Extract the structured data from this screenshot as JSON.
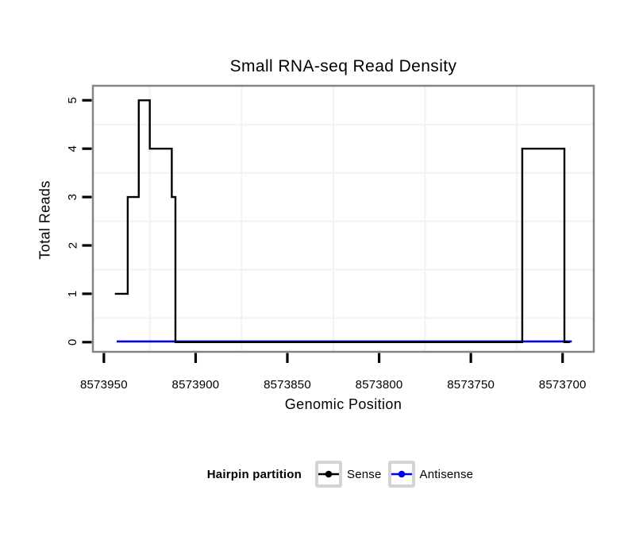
{
  "chart_data": {
    "type": "line",
    "subtype": "step",
    "title": "Small RNA-seq Read Density",
    "xlabel": "Genomic Position",
    "ylabel": "Total Reads",
    "x_axis_reversed": true,
    "xlim": [
      8573956,
      8573683
    ],
    "ylim": [
      -0.2,
      5.3
    ],
    "x_ticks": [
      8573950,
      8573900,
      8573850,
      8573800,
      8573750,
      8573700
    ],
    "y_ticks": [
      0,
      1,
      2,
      3,
      4,
      5
    ],
    "x_minor_gridlines": [
      8573925,
      8573875,
      8573825,
      8573775,
      8573725
    ],
    "y_minor_gridlines": [
      0.5,
      1.5,
      2.5,
      3.5,
      4.5
    ],
    "grid": "minor-only",
    "legend_position": "bottom",
    "series": [
      {
        "name": "Sense",
        "color": "#000000",
        "points": [
          [
            8573944,
            1
          ],
          [
            8573937,
            1
          ],
          [
            8573937,
            3
          ],
          [
            8573931,
            3
          ],
          [
            8573931,
            5
          ],
          [
            8573925,
            5
          ],
          [
            8573925,
            4
          ],
          [
            8573913,
            4
          ],
          [
            8573913,
            3
          ],
          [
            8573911,
            3
          ],
          [
            8573911,
            0
          ],
          [
            8573722,
            0
          ],
          [
            8573722,
            4
          ],
          [
            8573699,
            4
          ],
          [
            8573699,
            0
          ],
          [
            8573696,
            0
          ]
        ]
      },
      {
        "name": "Antisense",
        "color": "#0000EE",
        "points": [
          [
            8573943,
            0
          ],
          [
            8573695,
            0
          ]
        ]
      }
    ]
  },
  "legend": {
    "title": "Hairpin partition",
    "items": [
      {
        "label": "Sense",
        "color": "#000000"
      },
      {
        "label": "Antisense",
        "color": "#0000EE"
      }
    ]
  },
  "colors": {
    "background": "#ffffff",
    "plot_border": "#858585",
    "tick": "#000000",
    "minor_grid": "#f2f2f2",
    "legend_key_border": "#d4d4d4"
  }
}
